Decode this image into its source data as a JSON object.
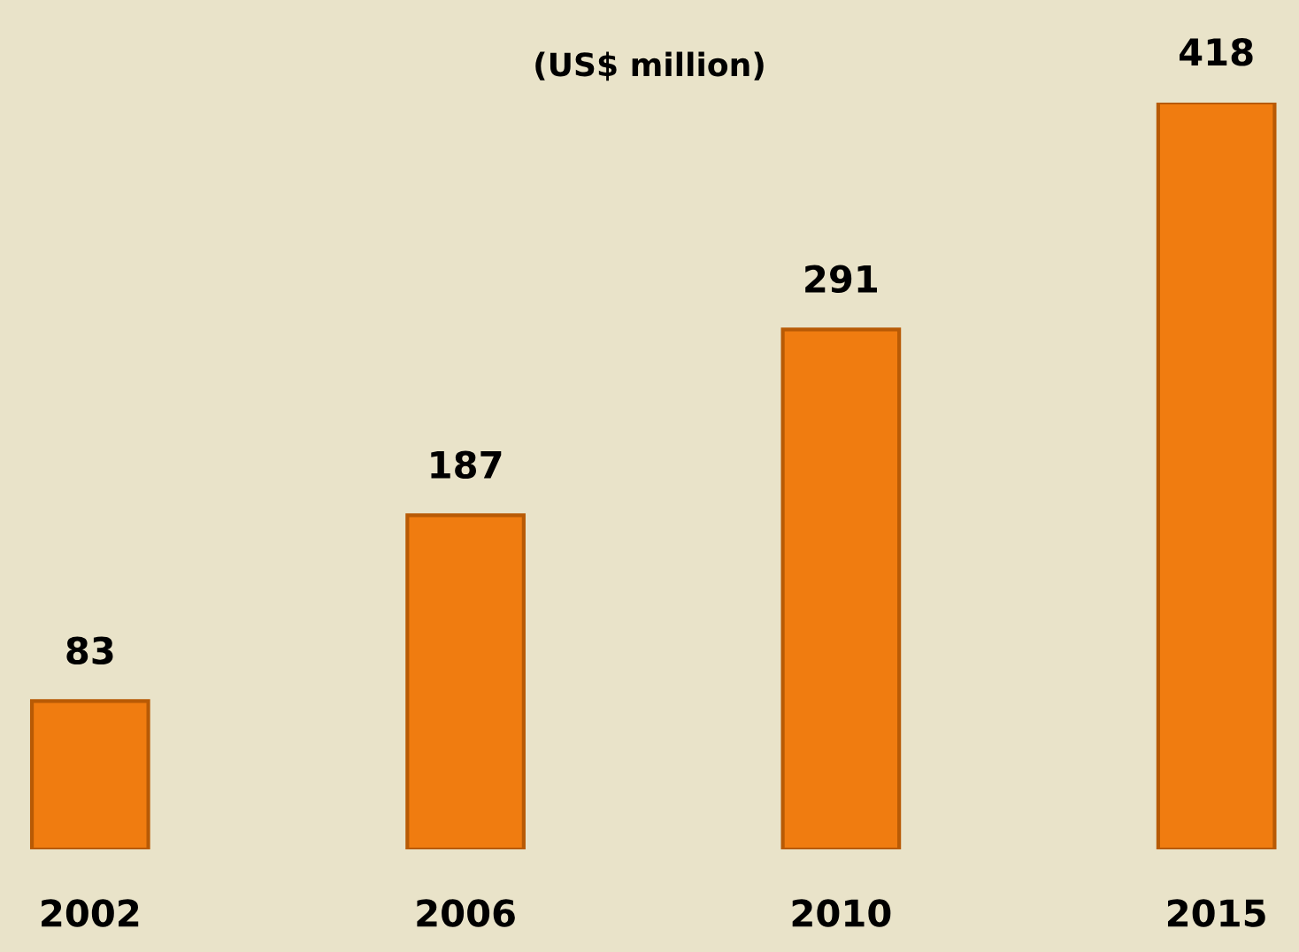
{
  "chart_data": {
    "type": "bar",
    "subtitle": "(US$ million)",
    "categories": [
      "2002",
      "2006",
      "2010",
      "2015"
    ],
    "values": [
      83,
      187,
      291,
      418
    ],
    "color": "#f07c10",
    "data_labels": true,
    "grid": false,
    "legend": false
  }
}
